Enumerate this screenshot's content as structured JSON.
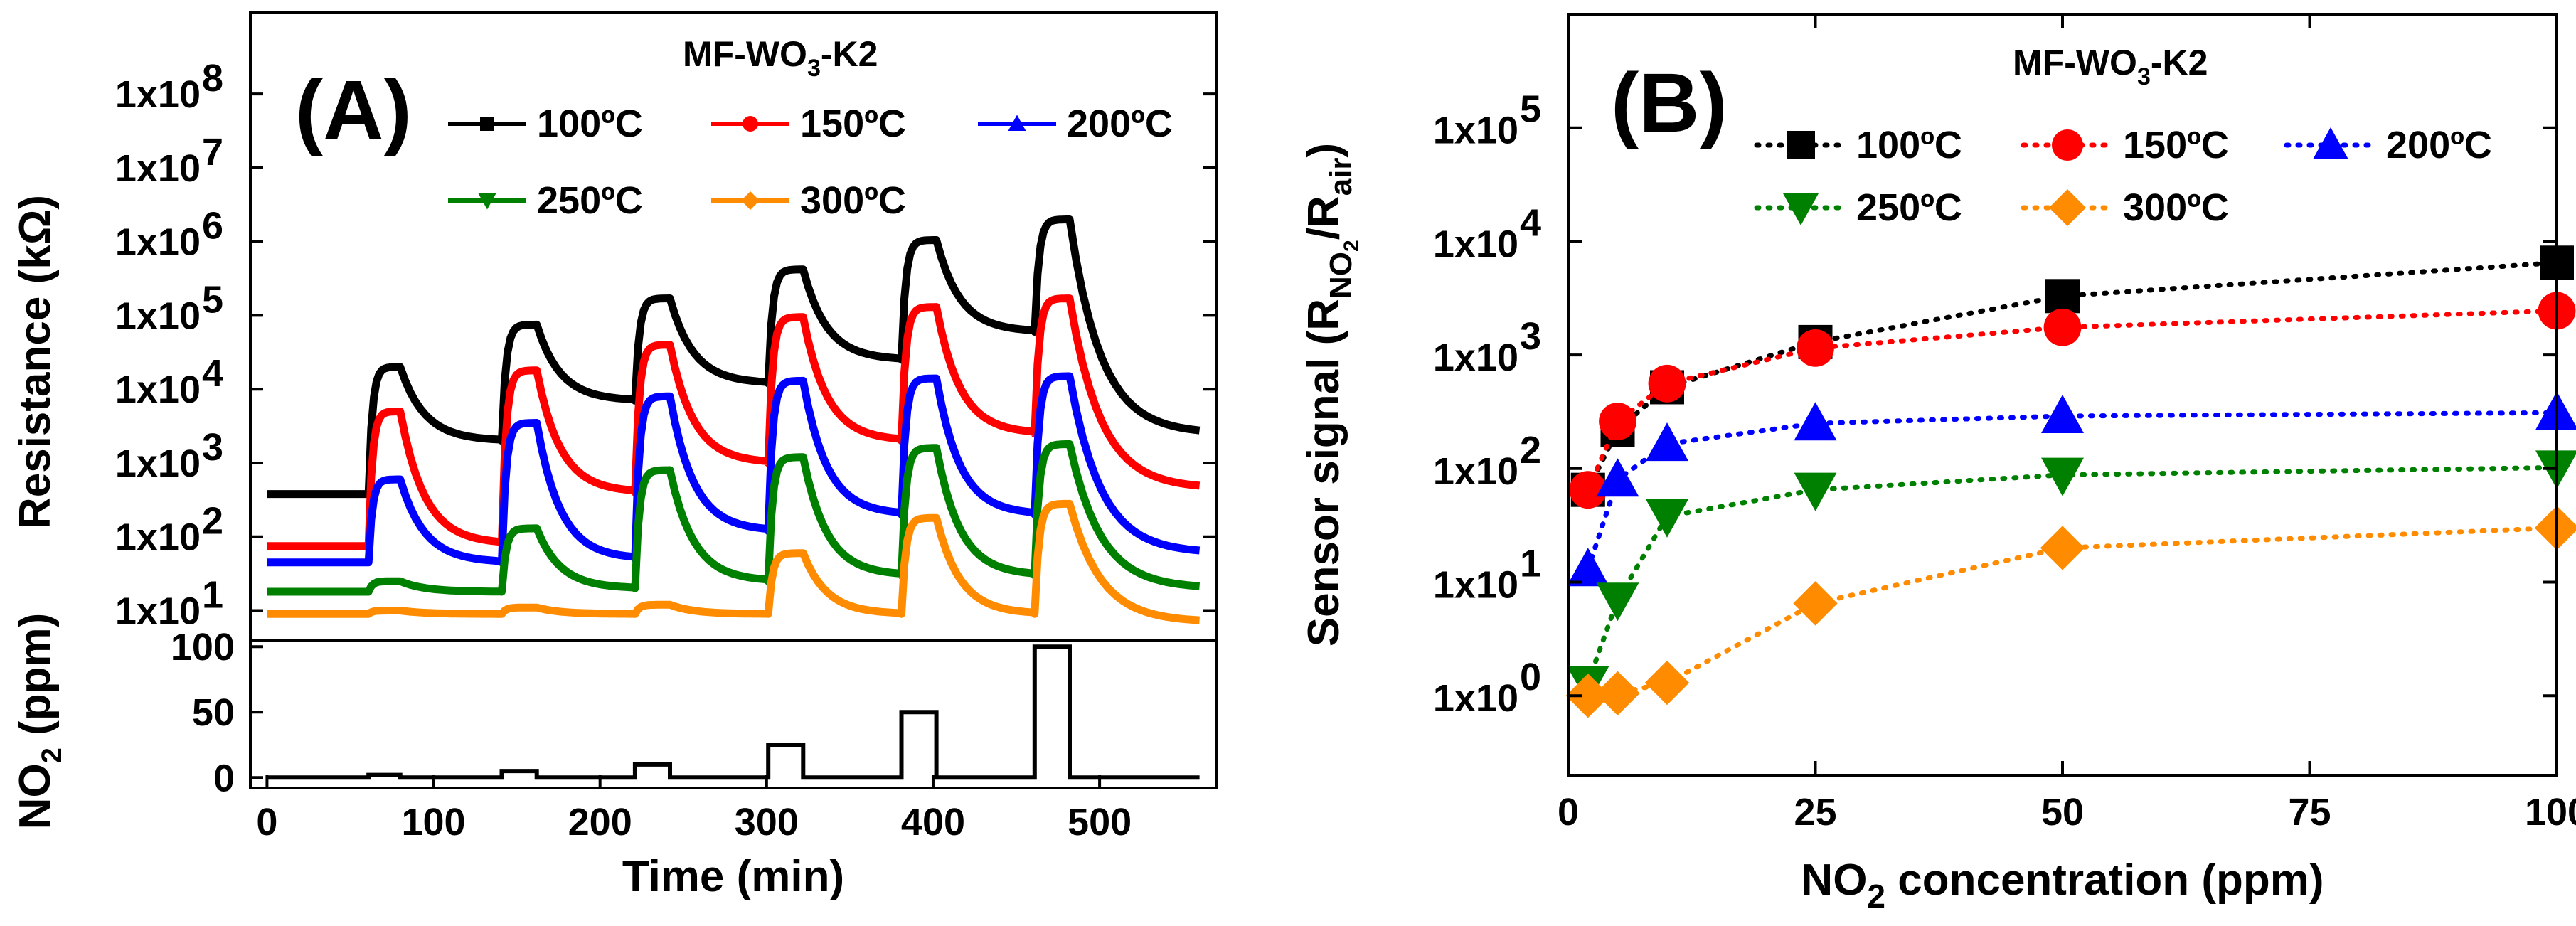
{
  "figure": {
    "panel_a_letter": "(A)",
    "panel_b_letter": "(B)"
  },
  "chart_data": [
    {
      "id": "A_resistance",
      "type": "line",
      "title": "MF-WO3-K2",
      "title_prefix": "MF-WO",
      "title_sub": "3",
      "title_suffix": "-K2",
      "ylabel": "Resistance (kΩ)",
      "xlabel": "Time (min)",
      "xlim": [
        -10,
        570
      ],
      "x_ticks": [
        0,
        100,
        200,
        300,
        400,
        500
      ],
      "x_tick_labels": [
        "0",
        "100",
        "200",
        "300",
        "400",
        "500"
      ],
      "yscale": "log",
      "ylim_exp": [
        0.6,
        9.1
      ],
      "y_tick_exps": [
        1,
        2,
        3,
        4,
        5,
        6,
        7,
        8
      ],
      "y_tick_labels": [
        "1x10",
        "1x10",
        "1x10",
        "1x10",
        "1x10",
        "1x10",
        "1x10",
        "1x10"
      ],
      "y_tick_sups": [
        "1",
        "2",
        "3",
        "4",
        "5",
        "6",
        "7",
        "8"
      ],
      "pulse_windows": [
        [
          61,
          80
        ],
        [
          141,
          162
        ],
        [
          221,
          242
        ],
        [
          301,
          322
        ],
        [
          381,
          402
        ],
        [
          461,
          482
        ]
      ],
      "end_time": 560,
      "series": [
        {
          "name": "100ºC",
          "color": "#000000",
          "marker": "square",
          "base": 380,
          "start_base": 380,
          "pulse_peaks": [
            20000,
            75000,
            170000,
            420000,
            1050000,
            2000000
          ],
          "pulse_ends": [
            2000,
            7000,
            12000,
            25000,
            60000,
            2500
          ]
        },
        {
          "name": "150ºC",
          "color": "#ff0000",
          "marker": "circle",
          "base": 75,
          "start_base": 75,
          "pulse_peaks": [
            5000,
            18000,
            40000,
            95000,
            130000,
            170000
          ],
          "pulse_ends": [
            80,
            400,
            1000,
            2000,
            2500,
            450
          ]
        },
        {
          "name": "200ºC",
          "color": "#0000ff",
          "marker": "triangle-up",
          "base": 45,
          "start_base": 45,
          "pulse_peaks": [
            600,
            3500,
            8000,
            13000,
            14000,
            15000
          ],
          "pulse_ends": [
            45,
            50,
            120,
            200,
            200,
            60
          ]
        },
        {
          "name": "250ºC",
          "color": "#008000",
          "marker": "triangle-down",
          "base": 18,
          "start_base": 18,
          "pulse_peaks": [
            25,
            130,
            800,
            1200,
            1600,
            1800
          ],
          "pulse_ends": [
            18,
            20,
            25,
            30,
            30,
            20
          ]
        },
        {
          "name": "300ºC",
          "color": "#ff8c00",
          "marker": "diamond",
          "base": 9,
          "start_base": 9,
          "pulse_peaks": [
            10,
            11,
            12,
            60,
            180,
            280
          ],
          "pulse_ends": [
            9,
            9,
            9,
            9,
            9,
            7
          ]
        }
      ],
      "legend_names": [
        "100ºC",
        "150ºC",
        "200ºC",
        "250ºC",
        "300ºC"
      ]
    },
    {
      "id": "A_no2_profile",
      "type": "line",
      "ylabel": "NO2 (ppm)",
      "ylabel_prefix": "NO",
      "ylabel_sub": "2",
      "ylabel_suffix": " (ppm)",
      "xlim": [
        -10,
        570
      ],
      "ylim": [
        -8,
        105
      ],
      "y_ticks": [
        0,
        50,
        100
      ],
      "y_tick_labels": [
        "0",
        "50",
        "100"
      ],
      "x": [
        0,
        61,
        61,
        80,
        80,
        141,
        141,
        162,
        162,
        221,
        221,
        242,
        242,
        301,
        301,
        322,
        322,
        381,
        381,
        402,
        402,
        461,
        461,
        482,
        482,
        560
      ],
      "y": [
        0,
        0,
        2,
        2,
        0,
        0,
        5,
        5,
        0,
        0,
        10,
        10,
        0,
        0,
        25,
        25,
        0,
        0,
        50,
        50,
        0,
        0,
        100,
        100,
        0,
        0
      ]
    },
    {
      "id": "B_sensor_signal",
      "type": "scatter",
      "title": "MF-WO3-K2",
      "title_prefix": "MF-WO",
      "title_sub": "3",
      "title_suffix": "-K2",
      "xlabel": "NO2 concentration (ppm)",
      "xlabel_prefix": "NO",
      "xlabel_sub": "2",
      "xlabel_suffix": " concentration (ppm)",
      "ylabel": "Sensor signal (RNO2/Rair)",
      "ylabel_pre": "Sensor signal (R",
      "ylabel_sub1": "NO",
      "ylabel_subsub": "2",
      "ylabel_mid": "/R",
      "ylabel_sub2": "air",
      "ylabel_end": ")",
      "xlim": [
        0,
        100
      ],
      "x_ticks": [
        0,
        25,
        50,
        75,
        100
      ],
      "x_tick_labels": [
        "0",
        "25",
        "50",
        "75",
        "100"
      ],
      "yscale": "log",
      "ylim_exp": [
        -0.7,
        6.0
      ],
      "y_tick_exps": [
        0,
        1,
        2,
        3,
        4,
        5
      ],
      "y_tick_labels": [
        "1x10",
        "1x10",
        "1x10",
        "1x10",
        "1x10",
        "1x10"
      ],
      "y_tick_sups": [
        "0",
        "1",
        "2",
        "3",
        "4",
        "5"
      ],
      "x": [
        2,
        5,
        10,
        25,
        50,
        100
      ],
      "series": [
        {
          "name": "100ºC",
          "color": "#000000",
          "marker": "square",
          "values": [
            65,
            220,
            520,
            1300,
            3300,
            6500
          ]
        },
        {
          "name": "150ºC",
          "color": "#ff0000",
          "marker": "circle",
          "values": [
            65,
            260,
            560,
            1150,
            1750,
            2450
          ]
        },
        {
          "name": "200ºC",
          "color": "#0000ff",
          "marker": "triangle-up",
          "values": [
            13,
            80,
            165,
            250,
            290,
            310
          ]
        },
        {
          "name": "250ºC",
          "color": "#008000",
          "marker": "triangle-down",
          "values": [
            1.3,
            7,
            38,
            65,
            88,
            102
          ]
        },
        {
          "name": "300ºC",
          "color": "#ff8c00",
          "marker": "diamond",
          "values": [
            1.0,
            1.05,
            1.3,
            6.5,
            20,
            30
          ]
        }
      ],
      "legend_names": [
        "100ºC",
        "150ºC",
        "200ºC",
        "250ºC",
        "300ºC"
      ]
    }
  ]
}
